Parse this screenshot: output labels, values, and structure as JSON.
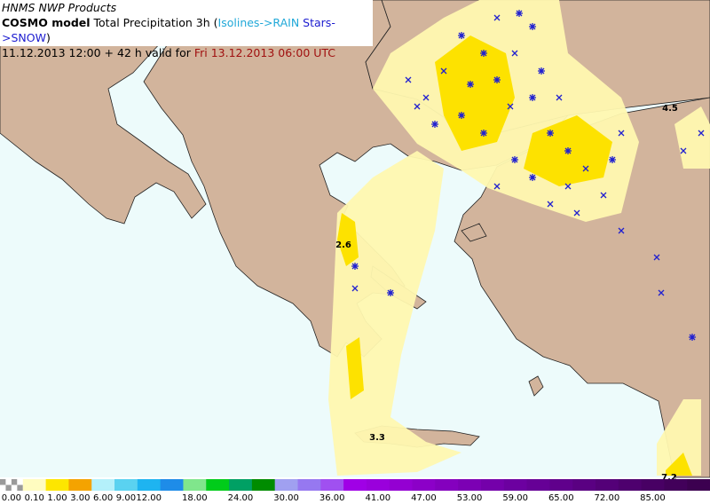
{
  "header": {
    "line1": "HNMS NWP Products",
    "model": "COSMO model",
    "product": " Total Precipitation 3h (",
    "rain": "Isolines->RAIN",
    "snow": " Stars->SNOW",
    "close": ")",
    "run": "11.12.2013 12:00 + 42 h valid for ",
    "valid": "Fri 13.12.2013 06:00 UTC"
  },
  "map_labels": [
    "4.5",
    "2.6",
    "3.3",
    "7.2"
  ],
  "colorbar": {
    "labels": [
      "0.00",
      "0.10",
      "1.00",
      "3.00",
      "6.00",
      "9.00",
      "12.00",
      "18.00",
      "24.00",
      "30.00",
      "36.00",
      "41.00",
      "47.00",
      "53.00",
      "59.00",
      "65.00",
      "72.00",
      "85.00"
    ],
    "colors": [
      "#9a9a9a",
      "#fffcc0",
      "#fde600",
      "#f4a300",
      "#b4f0fa",
      "#5ad2f0",
      "#1eb4f0",
      "#1e8ce8",
      "#80e68c",
      "#00cc1a",
      "#00a064",
      "#008c00",
      "#a0a0f0",
      "#9678f0",
      "#a050f0",
      "#a000e6",
      "#9a00dc",
      "#9400d2",
      "#8c00c8",
      "#8400be",
      "#7c00b4",
      "#7400aa",
      "#6c00a0",
      "#660096",
      "#60008c",
      "#5a0082",
      "#540078",
      "#4e006e",
      "#480064",
      "#42005a",
      "#3c0050"
    ]
  }
}
